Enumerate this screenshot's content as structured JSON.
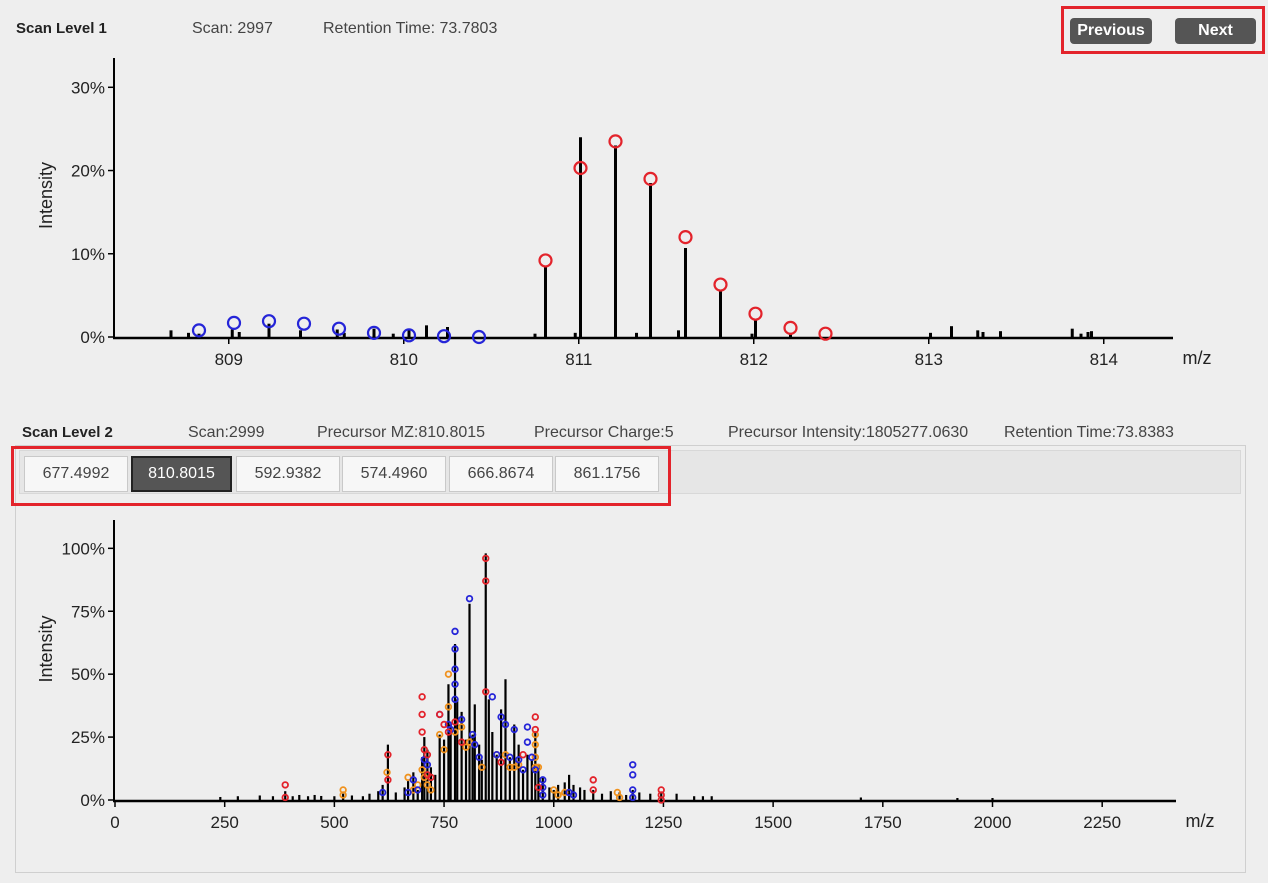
{
  "scan1": {
    "label": "Scan Level 1",
    "scan": "Scan: 2997",
    "retention": "Retention Time: 73.7803"
  },
  "nav": {
    "previous": "Previous",
    "next": "Next"
  },
  "scan2": {
    "label": "Scan Level 2",
    "scan": "Scan:2999",
    "precursor_mz": "Precursor MZ:810.8015",
    "precursor_charge": "Precursor Charge:5",
    "precursor_intensity": "Precursor Intensity:1805277.0630",
    "retention": "Retention Time:73.8383"
  },
  "tabs": {
    "items": [
      "677.4992",
      "810.8015",
      "592.9382",
      "574.4960",
      "666.8674",
      "861.1756"
    ],
    "active_index": 1
  },
  "colors": {
    "red": "#e3232b",
    "blue": "#2525d8",
    "orange": "#f0921e",
    "peak": "#000000"
  },
  "chart_data": [
    {
      "type": "bar",
      "xlabel": "m/z",
      "ylabel": "Intensity",
      "xlim": [
        808.35,
        814.35
      ],
      "ylim": [
        0,
        34
      ],
      "xticks": [
        809,
        810,
        811,
        812,
        813,
        814
      ],
      "xtick_labels": [
        "809",
        "810",
        "811",
        "812",
        "813",
        "814"
      ],
      "yticks": [
        0,
        10,
        20,
        30
      ],
      "ytick_labels": [
        "0%",
        "10%",
        "20%",
        "30%"
      ],
      "peaks": [
        [
          808.67,
          0.8
        ],
        [
          808.77,
          0.5
        ],
        [
          808.83,
          0.4
        ],
        [
          809.02,
          0.9
        ],
        [
          809.06,
          0.6
        ],
        [
          809.23,
          1.6
        ],
        [
          809.41,
          0.8
        ],
        [
          809.62,
          0.9
        ],
        [
          809.66,
          0.5
        ],
        [
          809.83,
          1.0
        ],
        [
          809.94,
          0.4
        ],
        [
          810.03,
          0.8
        ],
        [
          810.13,
          1.4
        ],
        [
          810.25,
          1.2
        ],
        [
          810.75,
          0.4
        ],
        [
          810.81,
          8.5
        ],
        [
          810.98,
          0.5
        ],
        [
          811.01,
          24.0
        ],
        [
          811.21,
          23.0
        ],
        [
          811.33,
          0.5
        ],
        [
          811.41,
          18.5
        ],
        [
          811.57,
          0.8
        ],
        [
          811.61,
          10.7
        ],
        [
          811.81,
          5.5
        ],
        [
          811.99,
          0.4
        ],
        [
          812.01,
          2.0
        ],
        [
          812.21,
          0.5
        ],
        [
          813.01,
          0.5
        ],
        [
          813.13,
          1.3
        ],
        [
          813.28,
          0.8
        ],
        [
          813.31,
          0.6
        ],
        [
          813.41,
          0.7
        ],
        [
          813.82,
          1.0
        ],
        [
          813.87,
          0.4
        ],
        [
          813.91,
          0.6
        ],
        [
          813.93,
          0.7
        ]
      ],
      "envelopes": [
        {
          "color": "blue",
          "points": [
            [
              808.83,
              0.8
            ],
            [
              809.03,
              1.7
            ],
            [
              809.23,
              1.9
            ],
            [
              809.43,
              1.6
            ],
            [
              809.63,
              1.0
            ],
            [
              809.83,
              0.5
            ],
            [
              810.03,
              0.2
            ],
            [
              810.23,
              0.1
            ],
            [
              810.43,
              0.0
            ]
          ]
        },
        {
          "color": "red",
          "points": [
            [
              810.81,
              9.2
            ],
            [
              811.01,
              20.3
            ],
            [
              811.21,
              23.5
            ],
            [
              811.41,
              19.0
            ],
            [
              811.61,
              12.0
            ],
            [
              811.81,
              6.3
            ],
            [
              812.01,
              2.8
            ],
            [
              812.21,
              1.1
            ],
            [
              812.41,
              0.4
            ]
          ]
        }
      ]
    },
    {
      "type": "bar",
      "xlabel": "m/z",
      "ylabel": "Intensity",
      "xlim": [
        0,
        2400
      ],
      "ylim": [
        0,
        120
      ],
      "xticks": [
        0,
        250,
        500,
        750,
        1000,
        1250,
        1500,
        1750,
        2000,
        2250
      ],
      "xtick_labels": [
        "0",
        "250",
        "500",
        "750",
        "1000",
        "1250",
        "1500",
        "1750",
        "2000",
        "2250"
      ],
      "yticks": [
        0,
        25,
        50,
        75,
        100
      ],
      "ytick_labels": [
        "0%",
        "25%",
        "50%",
        "75%",
        "100%"
      ],
      "peaks": [
        [
          240,
          1.2
        ],
        [
          280,
          1.5
        ],
        [
          330,
          1.8
        ],
        [
          360,
          1.5
        ],
        [
          388,
          3.5
        ],
        [
          405,
          1.5
        ],
        [
          420,
          2.0
        ],
        [
          440,
          1.5
        ],
        [
          455,
          2.0
        ],
        [
          470,
          1.6
        ],
        [
          500,
          1.5
        ],
        [
          520,
          2.5
        ],
        [
          540,
          1.8
        ],
        [
          565,
          1.5
        ],
        [
          580,
          2.5
        ],
        [
          600,
          3.5
        ],
        [
          610,
          6.0
        ],
        [
          622,
          22.0
        ],
        [
          640,
          3.0
        ],
        [
          660,
          5.0
        ],
        [
          668,
          7.5
        ],
        [
          680,
          11.0
        ],
        [
          690,
          4.0
        ],
        [
          700,
          17.0
        ],
        [
          705,
          25.0
        ],
        [
          712,
          20.0
        ],
        [
          720,
          13.0
        ],
        [
          730,
          10.0
        ],
        [
          740,
          26.0
        ],
        [
          750,
          24.0
        ],
        [
          760,
          46.0
        ],
        [
          765,
          30.0
        ],
        [
          775,
          62.0
        ],
        [
          780,
          40.0
        ],
        [
          790,
          35.0
        ],
        [
          800,
          24.0
        ],
        [
          808,
          78.0
        ],
        [
          815,
          26.0
        ],
        [
          820,
          38.0
        ],
        [
          830,
          22.0
        ],
        [
          836,
          16.0
        ],
        [
          845,
          98.0
        ],
        [
          852,
          40.0
        ],
        [
          860,
          27.0
        ],
        [
          870,
          18.0
        ],
        [
          880,
          36.0
        ],
        [
          890,
          48.0
        ],
        [
          900,
          17.0
        ],
        [
          910,
          30.0
        ],
        [
          920,
          22.0
        ],
        [
          930,
          12.0
        ],
        [
          940,
          18.0
        ],
        [
          950,
          16.0
        ],
        [
          958,
          27.0
        ],
        [
          965,
          14.0
        ],
        [
          975,
          9.0
        ],
        [
          990,
          5.0
        ],
        [
          1000,
          4.0
        ],
        [
          1010,
          6.0
        ],
        [
          1025,
          7.0
        ],
        [
          1035,
          10.0
        ],
        [
          1045,
          6.0
        ],
        [
          1060,
          5.0
        ],
        [
          1070,
          4.0
        ],
        [
          1090,
          4.0
        ],
        [
          1110,
          2.5
        ],
        [
          1130,
          3.5
        ],
        [
          1150,
          3.0
        ],
        [
          1165,
          2.0
        ],
        [
          1180,
          4.0
        ],
        [
          1195,
          3.0
        ],
        [
          1220,
          2.5
        ],
        [
          1245,
          3.0
        ],
        [
          1280,
          2.5
        ],
        [
          1320,
          1.5
        ],
        [
          1340,
          1.5
        ],
        [
          1360,
          1.5
        ],
        [
          1700,
          1.0
        ],
        [
          1920,
          0.8
        ],
        [
          2000,
          0.8
        ]
      ],
      "ions": {
        "red": [
          [
            388,
            6
          ],
          [
            388,
            1
          ],
          [
            622,
            18
          ],
          [
            622,
            8
          ],
          [
            700,
            41
          ],
          [
            700,
            34
          ],
          [
            700,
            27
          ],
          [
            705,
            20
          ],
          [
            712,
            18
          ],
          [
            712,
            10
          ],
          [
            720,
            9
          ],
          [
            740,
            34
          ],
          [
            750,
            30
          ],
          [
            760,
            27
          ],
          [
            775,
            31
          ],
          [
            790,
            23
          ],
          [
            845,
            96
          ],
          [
            845,
            87
          ],
          [
            845,
            43
          ],
          [
            880,
            15
          ],
          [
            930,
            18
          ],
          [
            958,
            33
          ],
          [
            958,
            28
          ],
          [
            965,
            5
          ],
          [
            1090,
            8
          ],
          [
            1090,
            4
          ],
          [
            1245,
            4
          ],
          [
            1245,
            2
          ],
          [
            1245,
            0
          ]
        ],
        "blue": [
          [
            610,
            3
          ],
          [
            668,
            3
          ],
          [
            680,
            8
          ],
          [
            690,
            4
          ],
          [
            705,
            16
          ],
          [
            712,
            14
          ],
          [
            740,
            34
          ],
          [
            760,
            30
          ],
          [
            765,
            28
          ],
          [
            775,
            67
          ],
          [
            775,
            60
          ],
          [
            775,
            52
          ],
          [
            775,
            46
          ],
          [
            775,
            40
          ],
          [
            790,
            32
          ],
          [
            808,
            80
          ],
          [
            815,
            26
          ],
          [
            820,
            22
          ],
          [
            830,
            17
          ],
          [
            860,
            41
          ],
          [
            870,
            18
          ],
          [
            880,
            33
          ],
          [
            890,
            30
          ],
          [
            900,
            17
          ],
          [
            910,
            28
          ],
          [
            920,
            16
          ],
          [
            930,
            12
          ],
          [
            940,
            29
          ],
          [
            940,
            23
          ],
          [
            950,
            17
          ],
          [
            958,
            12
          ],
          [
            975,
            8
          ],
          [
            975,
            5
          ],
          [
            975,
            2
          ],
          [
            1035,
            3
          ],
          [
            1045,
            2
          ],
          [
            1180,
            14
          ],
          [
            1180,
            10
          ],
          [
            1180,
            4
          ],
          [
            1180,
            1
          ]
        ],
        "orange": [
          [
            520,
            4
          ],
          [
            520,
            2
          ],
          [
            620,
            11
          ],
          [
            668,
            9
          ],
          [
            680,
            4
          ],
          [
            690,
            6
          ],
          [
            700,
            12
          ],
          [
            705,
            9
          ],
          [
            712,
            6
          ],
          [
            720,
            4
          ],
          [
            740,
            26
          ],
          [
            750,
            20
          ],
          [
            760,
            50
          ],
          [
            760,
            37
          ],
          [
            775,
            27
          ],
          [
            790,
            29
          ],
          [
            800,
            21
          ],
          [
            808,
            23
          ],
          [
            836,
            13
          ],
          [
            870,
            18
          ],
          [
            890,
            18
          ],
          [
            900,
            13
          ],
          [
            910,
            13
          ],
          [
            920,
            14
          ],
          [
            958,
            26
          ],
          [
            958,
            22
          ],
          [
            958,
            17
          ],
          [
            958,
            13
          ],
          [
            965,
            13
          ],
          [
            1000,
            4
          ],
          [
            1010,
            2
          ],
          [
            1025,
            3
          ],
          [
            1145,
            3
          ],
          [
            1150,
            1
          ]
        ]
      }
    }
  ]
}
